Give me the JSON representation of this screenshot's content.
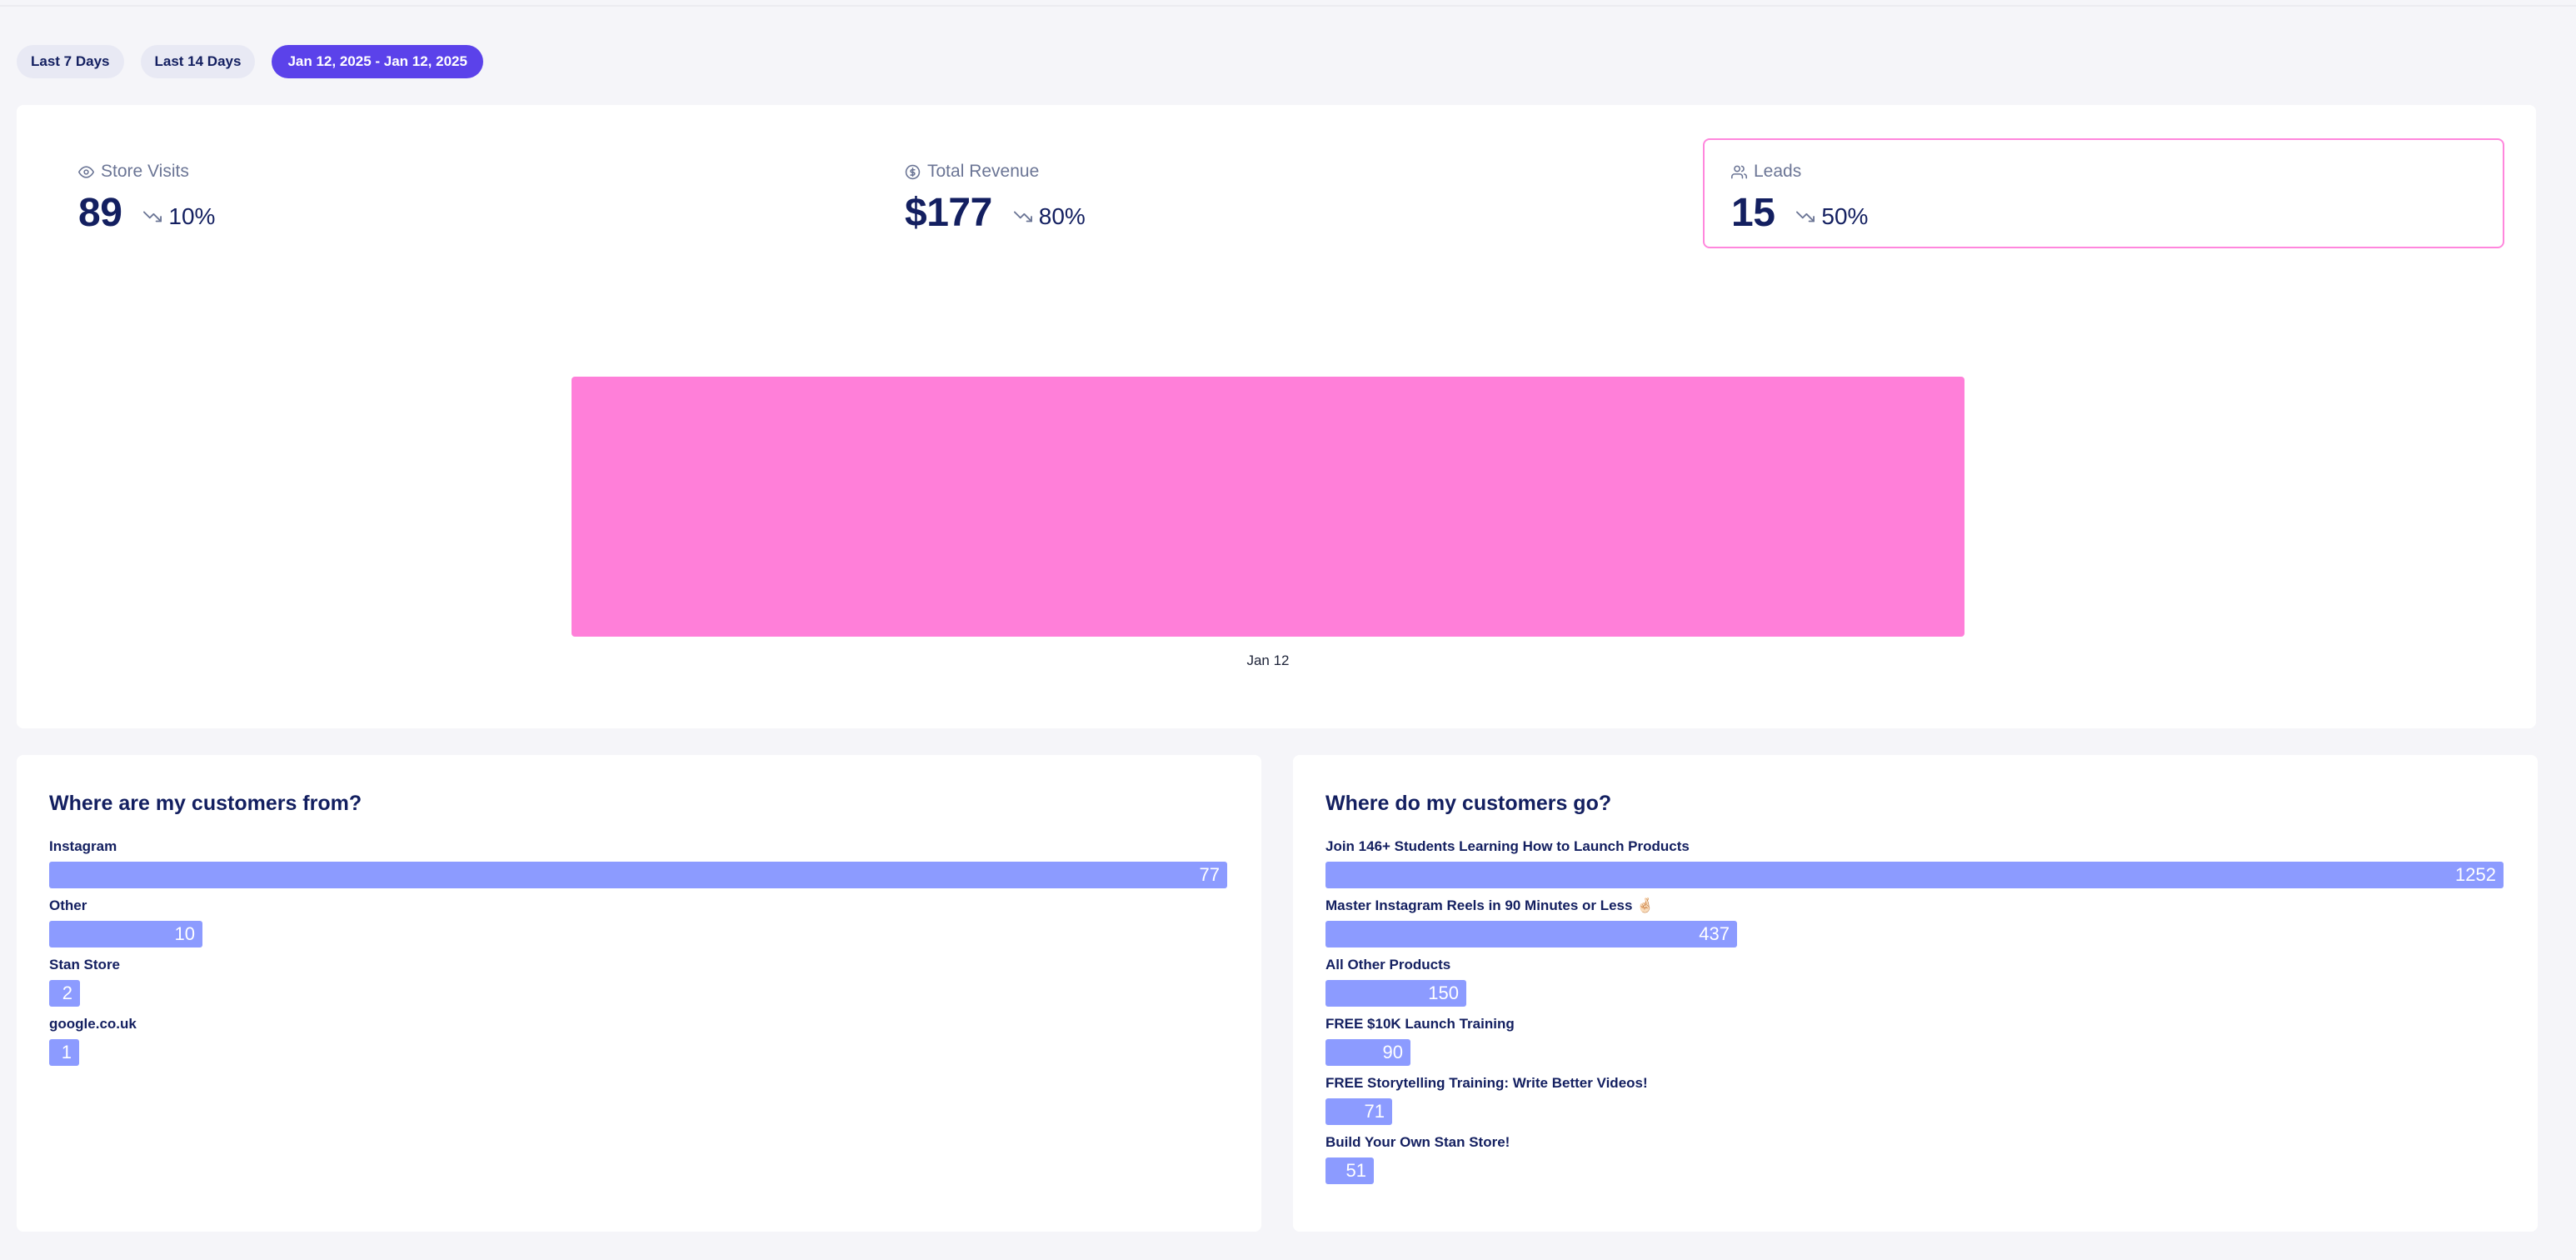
{
  "filters": {
    "options": [
      "Last 7 Days",
      "Last 14 Days",
      "Jan 12, 2025 - Jan 12, 2025"
    ],
    "active_index": 2
  },
  "stats": [
    {
      "label": "Store Visits",
      "icon": "eye-icon",
      "value": "89",
      "change": "10%",
      "trend": "down"
    },
    {
      "label": "Total Revenue",
      "icon": "dollar-circle-icon",
      "value": "$177",
      "change": "80%",
      "trend": "down"
    },
    {
      "label": "Leads",
      "icon": "users-icon",
      "value": "15",
      "change": "50%",
      "trend": "down"
    }
  ],
  "selected_stat": "Leads",
  "colors": {
    "accent": "#5b42ea",
    "chart_bar": "#ff7fd9",
    "hbar": "#8c9bff",
    "selected_border": "#ff87dd",
    "text_dark": "#131f60"
  },
  "chart_data": {
    "type": "bar",
    "categories": [
      "Jan 12"
    ],
    "series": [
      {
        "values": [
          15
        ]
      }
    ],
    "title": "",
    "xlabel": "",
    "ylabel": "",
    "grid": false
  },
  "sources": {
    "title": "Where are my customers from?",
    "items": [
      {
        "label": "Instagram",
        "value": 77
      },
      {
        "label": "Other",
        "value": 10
      },
      {
        "label": "Stan Store",
        "value": 2
      },
      {
        "label": "google.co.uk",
        "value": 1
      }
    ]
  },
  "destinations": {
    "title": "Where do my customers go?",
    "items": [
      {
        "label": "Join 146+ Students Learning How to Launch Products",
        "value": 1252
      },
      {
        "label": "Master Instagram Reels in 90 Minutes or Less 🤞🏻",
        "value": 437
      },
      {
        "label": "All Other Products",
        "value": 150
      },
      {
        "label": "FREE $10K Launch Training",
        "value": 90
      },
      {
        "label": "FREE Storytelling Training: Write Better Videos!",
        "value": 71
      },
      {
        "label": "Build Your Own Stan Store!",
        "value": 51
      }
    ]
  }
}
